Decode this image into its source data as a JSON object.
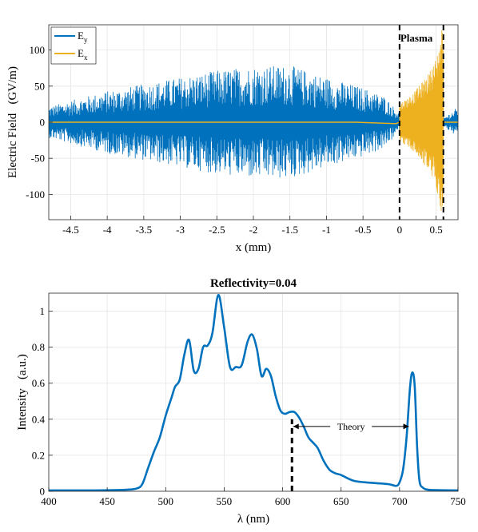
{
  "colors": {
    "ey": "#0072BD",
    "ex": "#EDB120",
    "grid": "#e6e6e6",
    "axis": "#262626"
  },
  "chart_data": [
    {
      "type": "line",
      "title": "",
      "xlabel": "x (mm)",
      "ylabel": "Electric Field   (GV/m)",
      "xlim": [
        -4.8,
        0.8
      ],
      "ylim": [
        -135,
        135
      ],
      "xticks": [
        -4.5,
        -4,
        -3.5,
        -3,
        -2.5,
        -2,
        -1.5,
        -1,
        -0.5,
        0,
        0.5
      ],
      "xtick_labels": [
        "-4.5",
        "-4",
        "-3.5",
        "-3",
        "-2.5",
        "-2",
        "-1.5",
        "-1",
        "-0.5",
        "0",
        "0.5"
      ],
      "yticks": [
        -100,
        -50,
        0,
        50,
        100
      ],
      "ytick_labels": [
        "-100",
        "-50",
        "0",
        "50",
        "100"
      ],
      "grid": true,
      "legend_position": "top-left",
      "series": [
        {
          "name": "E",
          "subscript": "y",
          "style": "dense oscillation",
          "envelope_x": [
            -4.8,
            -4.5,
            -4.0,
            -3.5,
            -3.0,
            -2.5,
            -2.0,
            -1.5,
            -1.0,
            -0.5,
            -0.2,
            0.0,
            0.3,
            0.6,
            0.8
          ],
          "envelope_y": [
            18,
            25,
            36,
            44,
            52,
            60,
            65,
            66,
            52,
            40,
            30,
            10,
            5,
            5,
            18
          ]
        },
        {
          "name": "E",
          "subscript": "x",
          "style": "near zero outside plasma, growing oscillation inside plasma",
          "envelope_x": [
            -4.8,
            -0.6,
            0.0,
            0.1,
            0.2,
            0.3,
            0.4,
            0.5,
            0.6
          ],
          "envelope_y": [
            1,
            1,
            25,
            32,
            40,
            52,
            65,
            85,
            135
          ]
        }
      ],
      "annotations": [
        {
          "text": "Plasma",
          "bold": true
        },
        {
          "type": "vline",
          "x": 0,
          "style": "dashed"
        },
        {
          "type": "vline",
          "x": 0.6,
          "style": "dashed"
        }
      ]
    },
    {
      "type": "line",
      "title": "Reflectivity=0.04",
      "xlabel": "λ (nm)",
      "ylabel": "Intensity   (a.u.)",
      "xlim": [
        400,
        750
      ],
      "ylim": [
        0,
        1.1
      ],
      "xticks": [
        400,
        450,
        500,
        550,
        600,
        650,
        700,
        750
      ],
      "xtick_labels": [
        "400",
        "450",
        "500",
        "550",
        "600",
        "650",
        "700",
        "750"
      ],
      "yticks": [
        0,
        0.2,
        0.4,
        0.6,
        0.8,
        1
      ],
      "ytick_labels": [
        "0",
        "0.2",
        "0.4",
        "0.6",
        "0.8",
        "1"
      ],
      "grid": true,
      "series": [
        {
          "name": "",
          "x": [
            400,
            440,
            465,
            475,
            480,
            485,
            490,
            495,
            500,
            505,
            508,
            512,
            516,
            520,
            524,
            528,
            532,
            536,
            540,
            545,
            550,
            555,
            560,
            565,
            570,
            574,
            578,
            582,
            586,
            590,
            594,
            598,
            602,
            606,
            610,
            614,
            618,
            622,
            626,
            630,
            635,
            640,
            645,
            650,
            660,
            670,
            690,
            697,
            700,
            703,
            706,
            709,
            711,
            713,
            715,
            717,
            720,
            725,
            735,
            750
          ],
          "y": [
            0.005,
            0.005,
            0.008,
            0.015,
            0.04,
            0.13,
            0.22,
            0.3,
            0.42,
            0.52,
            0.58,
            0.62,
            0.76,
            0.84,
            0.67,
            0.68,
            0.8,
            0.81,
            0.88,
            1.09,
            0.91,
            0.69,
            0.69,
            0.7,
            0.83,
            0.87,
            0.79,
            0.64,
            0.68,
            0.64,
            0.53,
            0.45,
            0.43,
            0.44,
            0.44,
            0.41,
            0.36,
            0.3,
            0.27,
            0.24,
            0.17,
            0.12,
            0.1,
            0.09,
            0.06,
            0.05,
            0.04,
            0.03,
            0.05,
            0.12,
            0.3,
            0.58,
            0.66,
            0.58,
            0.25,
            0.06,
            0.02,
            0.008,
            0.006,
            0.005
          ]
        }
      ],
      "annotations": [
        {
          "type": "vline",
          "x": 608,
          "y_range": [
            0,
            0.4
          ],
          "style": "dashed thick"
        },
        {
          "type": "double-arrow",
          "x_range": [
            609,
            708
          ],
          "y": 0.36,
          "text": "Theory"
        }
      ]
    }
  ]
}
